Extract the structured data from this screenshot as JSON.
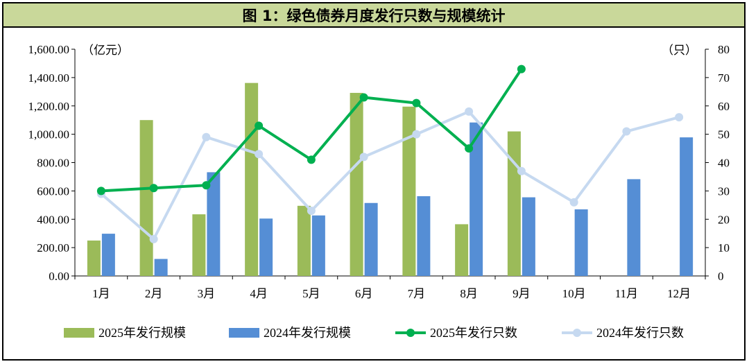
{
  "chart_data": {
    "type": "bar",
    "title": "图 1：绿色债券月度发行只数与规模统计",
    "y_left_unit": "（亿元）",
    "y_right_unit": "（只）",
    "ylim_left": [
      0,
      1600
    ],
    "ylim_right": [
      0,
      80
    ],
    "left_ticks": [
      "0.00",
      "200.00",
      "400.00",
      "600.00",
      "800.00",
      "1,000.00",
      "1,200.00",
      "1,400.00",
      "1,600.00"
    ],
    "right_ticks": [
      "0",
      "10",
      "20",
      "30",
      "40",
      "50",
      "60",
      "70",
      "80"
    ],
    "categories": [
      "1月",
      "2月",
      "3月",
      "4月",
      "5月",
      "6月",
      "7月",
      "8月",
      "9月",
      "10月",
      "11月",
      "12月"
    ],
    "series": [
      {
        "name": "2025年发行规模",
        "kind": "bar",
        "axis": "left",
        "color": "#9bbb59",
        "values": [
          250,
          1100,
          435,
          1362,
          495,
          1292,
          1195,
          365,
          1020,
          null,
          null,
          null
        ]
      },
      {
        "name": "2024年发行规模",
        "kind": "bar",
        "axis": "left",
        "color": "#558ed5",
        "values": [
          298,
          120,
          732,
          405,
          427,
          515,
          563,
          1083,
          555,
          470,
          683,
          978
        ]
      },
      {
        "name": "2025年发行只数",
        "kind": "line",
        "axis": "right",
        "color": "#00b050",
        "values": [
          30,
          31,
          32,
          53,
          41,
          63,
          61,
          45,
          73,
          null,
          null,
          null
        ]
      },
      {
        "name": "2024年发行只数",
        "kind": "line",
        "axis": "right",
        "color": "#c6d9f0",
        "values": [
          29,
          13,
          49,
          43,
          23,
          42,
          50,
          58,
          37,
          26,
          51,
          56
        ]
      }
    ],
    "legend_position": "bottom",
    "grid": false
  }
}
